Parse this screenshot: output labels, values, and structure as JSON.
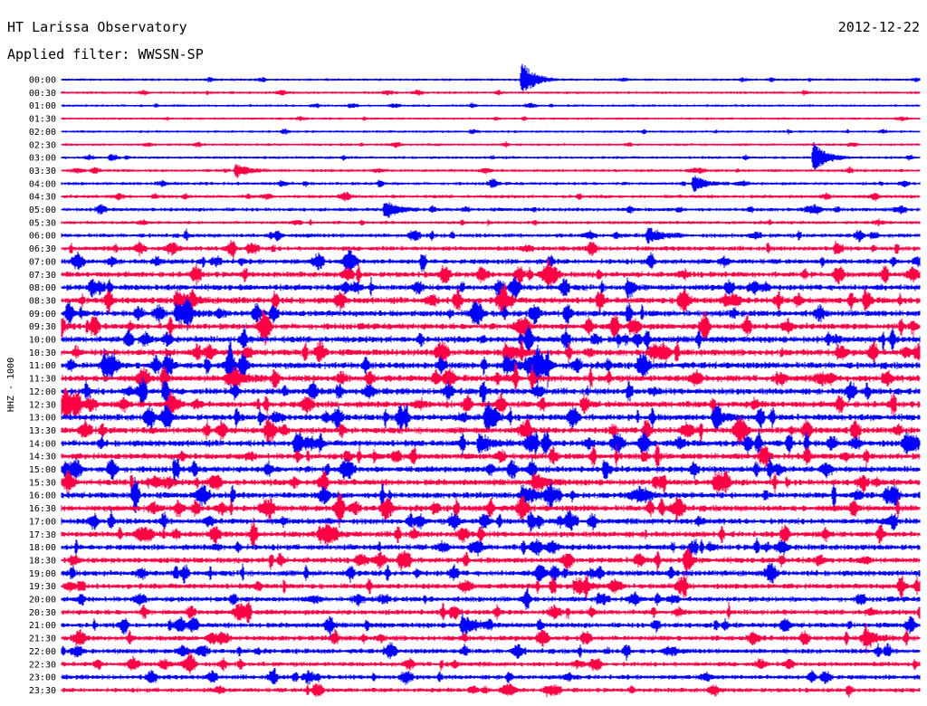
{
  "header": {
    "title": "HT Larissa Observatory",
    "date": "2012-12-22",
    "filter_label": "Applied filter: WWSSN-SP"
  },
  "chart_data": {
    "type": "line",
    "title": "HT Larissa Observatory",
    "subtitle": "Applied filter: WWSSN-SP",
    "ylabel": "HHZ - 1000",
    "date": "2012-12-22",
    "trace_colors": [
      "#0000ff",
      "#ff0044"
    ],
    "rows": [
      {
        "label": "00:00",
        "color": "#0000ff",
        "activity": 0.15
      },
      {
        "label": "00:30",
        "color": "#ff0044",
        "activity": 0.18
      },
      {
        "label": "01:00",
        "color": "#0000ff",
        "activity": 0.15
      },
      {
        "label": "01:30",
        "color": "#ff0044",
        "activity": 0.12
      },
      {
        "label": "02:00",
        "color": "#0000ff",
        "activity": 0.15
      },
      {
        "label": "02:30",
        "color": "#ff0044",
        "activity": 0.18
      },
      {
        "label": "03:00",
        "color": "#0000ff",
        "activity": 0.2
      },
      {
        "label": "03:30",
        "color": "#ff0044",
        "activity": 0.25
      },
      {
        "label": "04:00",
        "color": "#0000ff",
        "activity": 0.3
      },
      {
        "label": "04:30",
        "color": "#ff0044",
        "activity": 0.35
      },
      {
        "label": "05:00",
        "color": "#0000ff",
        "activity": 0.4
      },
      {
        "label": "05:30",
        "color": "#ff0044",
        "activity": 0.3
      },
      {
        "label": "06:00",
        "color": "#0000ff",
        "activity": 0.5
      },
      {
        "label": "06:30",
        "color": "#ff0044",
        "activity": 0.6
      },
      {
        "label": "07:00",
        "color": "#0000ff",
        "activity": 0.7
      },
      {
        "label": "07:30",
        "color": "#ff0044",
        "activity": 0.8
      },
      {
        "label": "08:00",
        "color": "#0000ff",
        "activity": 0.85
      },
      {
        "label": "08:30",
        "color": "#ff0044",
        "activity": 0.95
      },
      {
        "label": "09:00",
        "color": "#0000ff",
        "activity": 0.9
      },
      {
        "label": "09:30",
        "color": "#ff0044",
        "activity": 0.9
      },
      {
        "label": "10:00",
        "color": "#0000ff",
        "activity": 0.95
      },
      {
        "label": "10:30",
        "color": "#ff0044",
        "activity": 0.95
      },
      {
        "label": "11:00",
        "color": "#0000ff",
        "activity": 1.0
      },
      {
        "label": "11:30",
        "color": "#ff0044",
        "activity": 1.0
      },
      {
        "label": "12:00",
        "color": "#0000ff",
        "activity": 0.95
      },
      {
        "label": "12:30",
        "color": "#ff0044",
        "activity": 0.95
      },
      {
        "label": "13:00",
        "color": "#0000ff",
        "activity": 0.95
      },
      {
        "label": "13:30",
        "color": "#ff0044",
        "activity": 0.95
      },
      {
        "label": "14:00",
        "color": "#0000ff",
        "activity": 0.95
      },
      {
        "label": "14:30",
        "color": "#ff0044",
        "activity": 0.9
      },
      {
        "label": "15:00",
        "color": "#0000ff",
        "activity": 0.9
      },
      {
        "label": "15:30",
        "color": "#ff0044",
        "activity": 0.9
      },
      {
        "label": "16:00",
        "color": "#0000ff",
        "activity": 0.9
      },
      {
        "label": "16:30",
        "color": "#ff0044",
        "activity": 0.9
      },
      {
        "label": "17:00",
        "color": "#0000ff",
        "activity": 0.85
      },
      {
        "label": "17:30",
        "color": "#ff0044",
        "activity": 0.85
      },
      {
        "label": "18:00",
        "color": "#0000ff",
        "activity": 0.8
      },
      {
        "label": "18:30",
        "color": "#ff0044",
        "activity": 0.8
      },
      {
        "label": "19:00",
        "color": "#0000ff",
        "activity": 0.8
      },
      {
        "label": "19:30",
        "color": "#ff0044",
        "activity": 0.75
      },
      {
        "label": "20:00",
        "color": "#0000ff",
        "activity": 0.7
      },
      {
        "label": "20:30",
        "color": "#ff0044",
        "activity": 0.7
      },
      {
        "label": "21:00",
        "color": "#0000ff",
        "activity": 0.7
      },
      {
        "label": "21:30",
        "color": "#ff0044",
        "activity": 0.7
      },
      {
        "label": "22:00",
        "color": "#0000ff",
        "activity": 0.65
      },
      {
        "label": "22:30",
        "color": "#ff0044",
        "activity": 0.6
      },
      {
        "label": "23:00",
        "color": "#0000ff",
        "activity": 0.6
      },
      {
        "label": "23:30",
        "color": "#ff0044",
        "activity": 0.55
      }
    ],
    "events": [
      {
        "row": "00:00",
        "minute": 16.1,
        "amp": 2.6
      },
      {
        "row": "03:00",
        "minute": 26.3,
        "amp": 2.2
      },
      {
        "row": "03:30",
        "minute": 6.1,
        "amp": 1.0
      },
      {
        "row": "04:00",
        "minute": 22.1,
        "amp": 1.2
      },
      {
        "row": "05:00",
        "minute": 11.3,
        "amp": 1.3
      },
      {
        "row": "06:00",
        "minute": 20.5,
        "amp": 1.2
      },
      {
        "row": "08:30",
        "minute": 4.0,
        "amp": 1.4
      },
      {
        "row": "09:00",
        "minute": 4.0,
        "amp": 1.3
      },
      {
        "row": "10:30",
        "minute": 15.5,
        "amp": 1.3
      },
      {
        "row": "11:00",
        "minute": 15.5,
        "amp": 1.4
      },
      {
        "row": "11:30",
        "minute": 6.0,
        "amp": 1.2
      },
      {
        "row": "13:00",
        "minute": 22.8,
        "amp": 1.1
      },
      {
        "row": "14:00",
        "minute": 14.6,
        "amp": 1.4
      },
      {
        "row": "15:30",
        "minute": 16.5,
        "amp": 1.3
      },
      {
        "row": "16:00",
        "minute": 16.1,
        "amp": 1.5
      },
      {
        "row": "17:30",
        "minute": 9.0,
        "amp": 1.0
      },
      {
        "row": "19:30",
        "minute": 18.0,
        "amp": 1.0
      },
      {
        "row": "21:00",
        "minute": 14.0,
        "amp": 1.6
      },
      {
        "row": "21:30",
        "minute": 28.1,
        "amp": 1.1
      }
    ]
  }
}
